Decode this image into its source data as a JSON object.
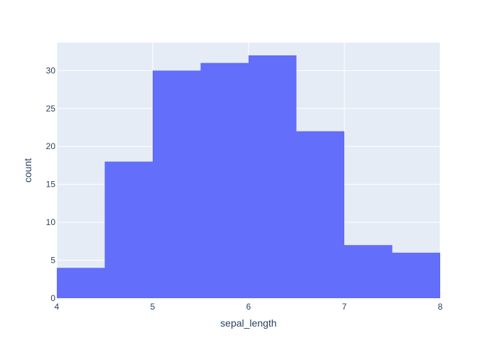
{
  "colors": {
    "plot_background": "#e5ecf6",
    "grid": "#ffffff",
    "bar_fill": "#636efa",
    "text": "#2a3f5f"
  },
  "chart_data": {
    "type": "bar",
    "histogram": true,
    "bins": [
      {
        "start": 4.0,
        "end": 4.5,
        "count": 4
      },
      {
        "start": 4.5,
        "end": 5.0,
        "count": 18
      },
      {
        "start": 5.0,
        "end": 5.5,
        "count": 30
      },
      {
        "start": 5.5,
        "end": 6.0,
        "count": 31
      },
      {
        "start": 6.0,
        "end": 6.5,
        "count": 32
      },
      {
        "start": 6.5,
        "end": 7.0,
        "count": 22
      },
      {
        "start": 7.0,
        "end": 7.5,
        "count": 7
      },
      {
        "start": 7.5,
        "end": 8.0,
        "count": 6
      }
    ],
    "xlabel": "sepal_length",
    "ylabel": "count",
    "xlim": [
      4,
      8
    ],
    "ylim": [
      0,
      33.68
    ],
    "x_ticks": [
      4,
      5,
      6,
      7,
      8
    ],
    "y_ticks": [
      0,
      5,
      10,
      15,
      20,
      25,
      30
    ],
    "grid": true,
    "legend": "none"
  }
}
